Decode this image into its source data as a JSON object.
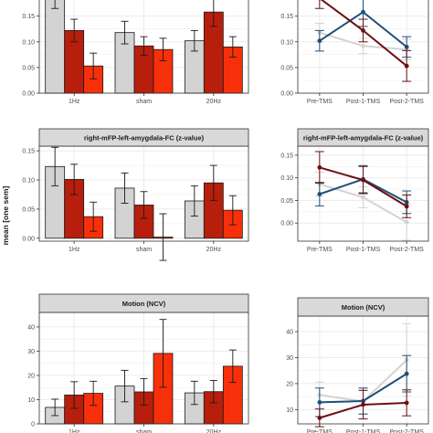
{
  "figure": {
    "ylabel": "mean [one sem]"
  },
  "colors": {
    "pre": "#d3d3d3",
    "post1": "#b81e0c",
    "post2": "#f8300a",
    "line_1hz": "#d3d3d3",
    "line_sham": "#1f4e79",
    "line_20hz": "#6d0f12",
    "strip": "#d9d9d9",
    "grid": "#ebebeb",
    "errorbar": "#1a1a1a"
  },
  "chart_data": [
    {
      "type": "bar",
      "title": "",
      "categories": [
        "1Hz",
        "sham",
        "20Hz"
      ],
      "ylim": [
        0,
        0.185
      ],
      "yticks": [
        "0.00",
        "0.05",
        "0.10",
        "0.15"
      ],
      "series": [
        {
          "values": [
            0.185,
            0.118,
            0.102
          ],
          "err": [
            0.02,
            0.022,
            0.02
          ],
          "color_key": "pre"
        },
        {
          "values": [
            0.122,
            0.092,
            0.158
          ],
          "err": [
            0.022,
            0.018,
            0.028
          ],
          "color_key": "post1"
        },
        {
          "values": [
            0.053,
            0.085,
            0.09
          ],
          "err": [
            0.025,
            0.022,
            0.02
          ],
          "color_key": "post2"
        }
      ]
    },
    {
      "type": "line",
      "title": "",
      "categories": [
        "Pre-TMS",
        "Post-1-TMS",
        "Post-2-TMS"
      ],
      "ylim": [
        0,
        0.185
      ],
      "yticks": [
        "0.00",
        "0.05",
        "0.10",
        "0.15"
      ],
      "series": [
        {
          "values": [
            0.118,
            0.092,
            0.085
          ],
          "err": [
            0.018,
            0.015,
            0.02
          ],
          "color_key": "line_1hz"
        },
        {
          "values": [
            0.102,
            0.158,
            0.09
          ],
          "err": [
            0.02,
            0.028,
            0.02
          ],
          "color_key": "line_sham"
        },
        {
          "values": [
            0.185,
            0.122,
            0.053
          ],
          "err": [
            0.02,
            0.022,
            0.03
          ],
          "color_key": "line_20hz"
        }
      ]
    },
    {
      "type": "bar",
      "title": "right-mFP-left-amygdala-FC (z-value)",
      "categories": [
        "1Hz",
        "sham",
        "20Hz"
      ],
      "ylim": [
        -0.005,
        0.158
      ],
      "yticks": [
        "0.00",
        "0.05",
        "0.10",
        "0.15"
      ],
      "series": [
        {
          "values": [
            0.123,
            0.086,
            0.064
          ],
          "err": [
            0.033,
            0.026,
            0.026
          ],
          "color_key": "pre"
        },
        {
          "values": [
            0.101,
            0.057,
            0.095
          ],
          "err": [
            0.026,
            0.023,
            0.03
          ],
          "color_key": "post1"
        },
        {
          "values": [
            0.037,
            0.002,
            0.048
          ],
          "err": [
            0.025,
            0.04,
            0.025
          ],
          "color_key": "post2"
        }
      ]
    },
    {
      "type": "line",
      "title": "right-mFP-left-amygdala-FC (z-value)",
      "categories": [
        "Pre-TMS",
        "Post-1-TMS",
        "Post-2-TMS"
      ],
      "ylim": [
        -0.04,
        0.17
      ],
      "yticks": [
        "0.00",
        "0.05",
        "0.10",
        "0.15"
      ],
      "series": [
        {
          "values": [
            0.086,
            0.057,
            0.002
          ],
          "err": [
            0.026,
            0.023,
            0.04
          ],
          "color_key": "line_1hz"
        },
        {
          "values": [
            0.064,
            0.097,
            0.046
          ],
          "err": [
            0.026,
            0.03,
            0.025
          ],
          "color_key": "line_sham"
        },
        {
          "values": [
            0.123,
            0.095,
            0.037
          ],
          "err": [
            0.035,
            0.03,
            0.025
          ],
          "color_key": "line_20hz"
        }
      ]
    },
    {
      "type": "bar",
      "title": "Motion (NCV)",
      "categories": [
        "1Hz",
        "sham",
        "20Hz"
      ],
      "ylim": [
        0,
        46
      ],
      "yticks": [
        "0",
        "10",
        "20",
        "30",
        "40"
      ],
      "series": [
        {
          "values": [
            6.8,
            15.6,
            12.8
          ],
          "err": [
            3.4,
            6.5,
            4.8
          ],
          "color_key": "pre"
        },
        {
          "values": [
            11.9,
            13.2,
            13.3
          ],
          "err": [
            5.5,
            5.5,
            4.6
          ],
          "color_key": "post1"
        },
        {
          "values": [
            12.6,
            29.1,
            23.8
          ],
          "err": [
            5,
            14,
            6.7
          ],
          "color_key": "post2"
        }
      ]
    },
    {
      "type": "line",
      "title": "Motion (NCV)",
      "categories": [
        "Pre-TMS",
        "Post-1-TMS",
        "Post-2-TMS"
      ],
      "ylim": [
        4.5,
        46
      ],
      "yticks": [
        "10",
        "20",
        "30",
        "40"
      ],
      "series": [
        {
          "values": [
            15.6,
            13.2,
            29.1
          ],
          "err": [
            5,
            5,
            14
          ],
          "color_key": "line_1hz"
        },
        {
          "values": [
            12.8,
            13.3,
            23.8
          ],
          "err": [
            5.5,
            5,
            7
          ],
          "color_key": "line_sham"
        },
        {
          "values": [
            6.8,
            11.9,
            12.6
          ],
          "err": [
            3.4,
            5.5,
            5
          ],
          "color_key": "line_20hz"
        }
      ]
    }
  ]
}
